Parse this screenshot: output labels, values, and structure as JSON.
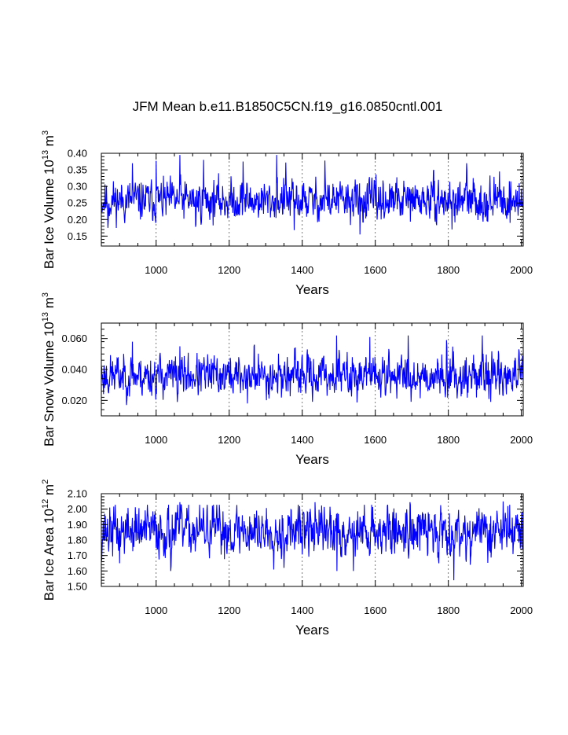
{
  "title": "JFM Mean b.e11.B1850C5CN.f19_g16.0850cntl.001",
  "colors": {
    "series": "#0000ff",
    "axis": "#000000",
    "grid": "#555555"
  },
  "chart_data": [
    {
      "type": "line",
      "name": "ice-volume",
      "ylabel": "Bar Ice Volume",
      "ylabel_unit_base": "10",
      "ylabel_unit_exp": "13",
      "ylabel_unit_m": "m",
      "ylabel_unit_mexp": "3",
      "xlabel": "Years",
      "xlim": [
        850,
        2005
      ],
      "ylim": [
        0.12,
        0.4
      ],
      "xticks": [
        1000,
        1200,
        1400,
        1600,
        1800,
        2000
      ],
      "xtick_labels": [
        "1000",
        "1200",
        "1400",
        "1600",
        "1800",
        "2000"
      ],
      "yticks": [
        0.15,
        0.2,
        0.25,
        0.3,
        0.35,
        0.4
      ],
      "ytick_labels": [
        "0.15",
        "0.20",
        "0.25",
        "0.30",
        "0.35",
        "0.40"
      ],
      "grid_x": true,
      "series": {
        "name": "ice volume",
        "mean": 0.257,
        "amp": 0.028,
        "seed": 11,
        "spikes": [
          [
            935,
            0.37
          ],
          [
            1000,
            0.377
          ],
          [
            1065,
            0.395
          ],
          [
            1130,
            0.38
          ],
          [
            1238,
            0.375
          ],
          [
            1330,
            0.395
          ],
          [
            1355,
            0.372
          ],
          [
            1462,
            0.378
          ],
          [
            1760,
            0.35
          ],
          [
            1850,
            0.37
          ],
          [
            1940,
            0.345
          ],
          [
            1558,
            0.155
          ],
          [
            1378,
            0.168
          ],
          [
            1108,
            0.178
          ],
          [
            868,
            0.175
          ],
          [
            1810,
            0.17
          ]
        ]
      }
    },
    {
      "type": "line",
      "name": "snow-volume",
      "ylabel": "Bar Snow Volume",
      "ylabel_unit_base": "10",
      "ylabel_unit_exp": "13",
      "ylabel_unit_m": "m",
      "ylabel_unit_mexp": "3",
      "xlabel": "Years",
      "xlim": [
        850,
        2005
      ],
      "ylim": [
        0.01,
        0.07
      ],
      "xticks": [
        1000,
        1200,
        1400,
        1600,
        1800,
        2000
      ],
      "xtick_labels": [
        "1000",
        "1200",
        "1400",
        "1600",
        "1800",
        "2000"
      ],
      "yticks": [
        0.02,
        0.04,
        0.06
      ],
      "ytick_labels": [
        "0.020",
        "0.040",
        "0.060"
      ],
      "grid_x": true,
      "series": {
        "name": "snow volume",
        "mean": 0.036,
        "amp": 0.0062,
        "seed": 23,
        "spikes": [
          [
            935,
            0.058
          ],
          [
            1065,
            0.055
          ],
          [
            1268,
            0.055
          ],
          [
            1494,
            0.062
          ],
          [
            1585,
            0.061
          ],
          [
            1690,
            0.062
          ],
          [
            1795,
            0.059
          ],
          [
            1893,
            0.062
          ],
          [
            1250,
            0.018
          ],
          [
            1058,
            0.019
          ]
        ]
      }
    },
    {
      "type": "line",
      "name": "ice-area",
      "ylabel": "Bar Ice Area",
      "ylabel_unit_base": "10",
      "ylabel_unit_exp": "12",
      "ylabel_unit_m": "m",
      "ylabel_unit_mexp": "2",
      "xlabel": "Years",
      "xlim": [
        850,
        2005
      ],
      "ylim": [
        1.5,
        2.1
      ],
      "xticks": [
        1000,
        1200,
        1400,
        1600,
        1800,
        2000
      ],
      "xtick_labels": [
        "1000",
        "1200",
        "1400",
        "1600",
        "1800",
        "2000"
      ],
      "yticks": [
        1.5,
        1.6,
        1.7,
        1.8,
        1.9,
        2.0,
        2.1
      ],
      "ytick_labels": [
        "1.50",
        "1.60",
        "1.70",
        "1.80",
        "1.90",
        "2.00",
        "2.10"
      ],
      "grid_x": true,
      "series": {
        "name": "ice area",
        "mean": 1.86,
        "amp": 0.075,
        "seed": 37,
        "spikes": [
          [
            1065,
            2.045
          ],
          [
            1435,
            2.045
          ],
          [
            1695,
            2.045
          ],
          [
            1950,
            2.05
          ],
          [
            1815,
            1.54
          ],
          [
            1040,
            1.6
          ],
          [
            1495,
            1.6
          ],
          [
            1540,
            1.6
          ],
          [
            1860,
            1.64
          ],
          [
            1350,
            1.62
          ],
          [
            900,
            1.65
          ]
        ]
      }
    }
  ]
}
